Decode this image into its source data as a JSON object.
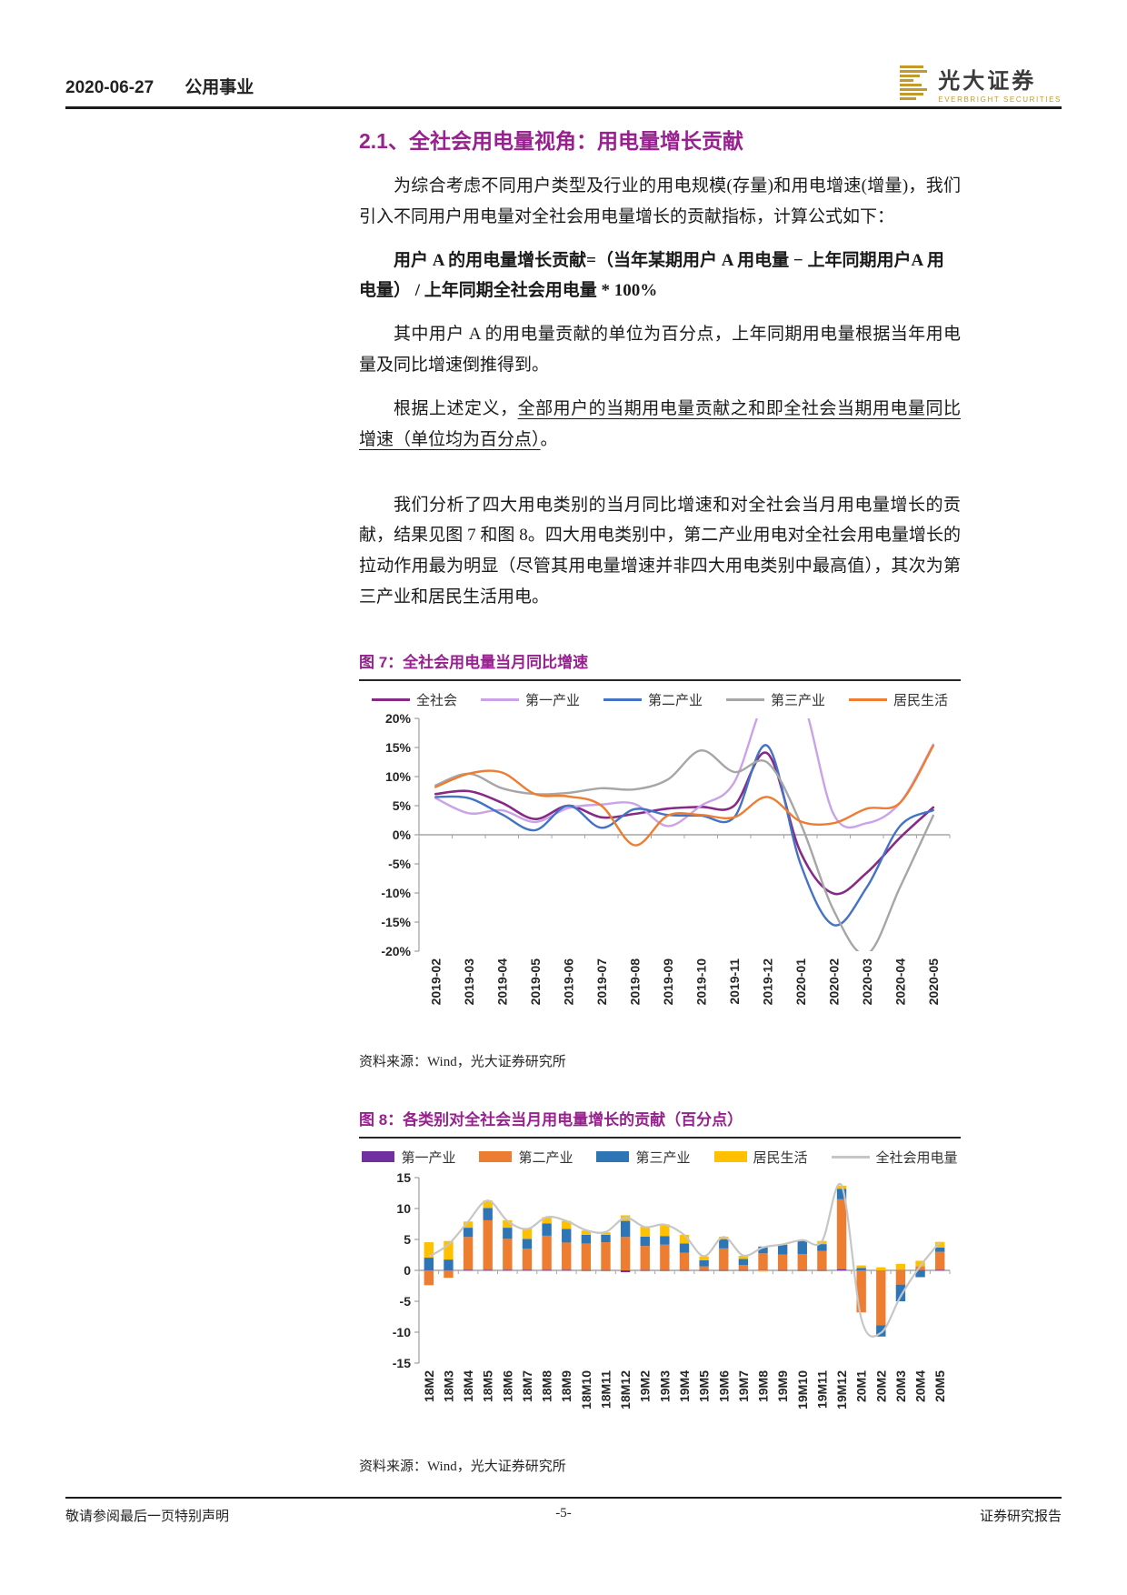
{
  "header": {
    "date": "2020-06-27",
    "category": "公用事业",
    "brand_cn": "光大证券",
    "brand_en": "EVERBRIGHT SECURITIES"
  },
  "section": {
    "heading": "2.1、全社会用电量视角：用电量增长贡献",
    "p1": "为综合考虑不同用户类型及行业的用电规模(存量)和用电增速(增量)，我们引入不同用户用电量对全社会用电量增长的贡献指标，计算公式如下：",
    "formula": "用户 A 的用电量增长贡献=（当年某期用户 A 用电量 − 上年同期用户A 用电量） / 上年同期全社会用电量 * 100%",
    "p3": "其中用户 A 的用电量贡献的单位为百分点，上年同期用电量根据当年用电量及同比增速倒推得到。",
    "p4_prefix": "根据上述定义，",
    "p4_underline": "全部用户的当期用电量贡献之和即全社会当期用电量同比增速（单位均为百分点）",
    "p4_suffix": "。",
    "p5": "我们分析了四大用电类别的当月同比增速和对全社会当月用电量增长的贡献，结果见图 7 和图 8。四大用电类别中，第二产业用电对全社会用电量增长的拉动作用最为明显（尽管其用电量增速并非四大用电类别中最高值），其次为第三产业和居民生活用电。"
  },
  "figure7": {
    "title": "图 7：全社会用电量当月同比增速",
    "source": "资料来源：Wind，光大证券研究所"
  },
  "figure8": {
    "title": "图 8：各类别对全社会当月用电量增长的贡献（百分点）",
    "source": "资料来源：Wind，光大证券研究所"
  },
  "footer": {
    "left": "敬请参阅最后一页特别声明",
    "center": "-5-",
    "right": "证券研究报告"
  },
  "chart_data": [
    {
      "type": "line",
      "title": "全社会用电量当月同比增速",
      "x": [
        "2019-02",
        "2019-03",
        "2019-04",
        "2019-05",
        "2019-06",
        "2019-07",
        "2019-08",
        "2019-09",
        "2019-10",
        "2019-11",
        "2019-12",
        "2020-01",
        "2020-02",
        "2020-03",
        "2020-04",
        "2020-05"
      ],
      "series": [
        {
          "name": "全社会",
          "color": "#872a86",
          "width": 2.6,
          "values": [
            7.0,
            7.5,
            5.5,
            2.7,
            5.0,
            3.0,
            3.6,
            4.5,
            4.8,
            5.0,
            14.0,
            -3.0,
            -10.1,
            -6.5,
            -0.5,
            4.7
          ]
        },
        {
          "name": "第一产业",
          "color": "#c9a2e8",
          "width": 2.4,
          "values": [
            6.3,
            3.7,
            4.2,
            2.2,
            4.6,
            5.2,
            5.3,
            1.5,
            5.0,
            9.0,
            24.0,
            24.0,
            3.5,
            2.0,
            5.5,
            15.5
          ]
        },
        {
          "name": "第二产业",
          "color": "#4472c4",
          "width": 2.4,
          "values": [
            6.5,
            6.3,
            3.5,
            0.8,
            5.0,
            1.2,
            4.4,
            3.4,
            3.3,
            3.0,
            15.3,
            -5.0,
            -15.5,
            -9.0,
            1.5,
            4.2
          ]
        },
        {
          "name": "第三产业",
          "color": "#a6a6a6",
          "width": 2.4,
          "values": [
            8.5,
            10.5,
            8.0,
            7.0,
            7.2,
            8.0,
            7.8,
            9.5,
            14.5,
            10.8,
            12.4,
            2.0,
            -13.0,
            -20.5,
            -9.0,
            3.3
          ]
        },
        {
          "name": "居民生活",
          "color": "#ed7d31",
          "width": 2.4,
          "values": [
            8.2,
            10.5,
            10.7,
            7.0,
            6.6,
            5.0,
            -1.8,
            3.3,
            3.4,
            3.0,
            6.5,
            2.3,
            2.0,
            4.5,
            5.5,
            15.3
          ]
        }
      ],
      "ylim": [
        -20,
        20
      ],
      "ytick_step": 5,
      "yformat": "percent",
      "grid": false,
      "legend_position": "top"
    },
    {
      "type": "bar",
      "stacked": true,
      "title": "各类别对全社会当月用电量增长的贡献（百分点）",
      "categories": [
        "18M2",
        "18M3",
        "18M4",
        "18M5",
        "18M6",
        "18M7",
        "18M8",
        "18M9",
        "18M10",
        "18M11",
        "18M12",
        "19M2",
        "19M3",
        "19M4",
        "19M5",
        "19M6",
        "19M7",
        "19M8",
        "19M9",
        "19M10",
        "19M11",
        "19M12",
        "20M1",
        "20M2",
        "20M3",
        "20M4",
        "20M5"
      ],
      "series": [
        {
          "name": "第一产业",
          "color": "#7030a0",
          "values": [
            0.05,
            0.05,
            0.1,
            0.1,
            0.1,
            0.1,
            0.1,
            0.1,
            0.05,
            0.05,
            -0.3,
            0.05,
            0.05,
            0.05,
            0.05,
            0.05,
            0.05,
            0.05,
            0.05,
            0.05,
            0.05,
            0.2,
            0.0,
            0.0,
            0.05,
            0.05,
            0.1
          ]
        },
        {
          "name": "第二产业",
          "color": "#ed7d31",
          "values": [
            -2.4,
            -1.2,
            5.3,
            8.0,
            5.0,
            3.4,
            5.5,
            4.4,
            4.3,
            4.5,
            5.4,
            3.9,
            4.1,
            2.8,
            0.6,
            3.5,
            0.8,
            2.7,
            2.5,
            2.6,
            3.1,
            11.3,
            -6.8,
            -8.9,
            -2.3,
            0.6,
            2.9
          ]
        },
        {
          "name": "第三产业",
          "color": "#2e75b6",
          "values": [
            2.0,
            1.7,
            1.5,
            2.0,
            1.8,
            1.6,
            2.0,
            2.2,
            1.4,
            1.2,
            2.6,
            1.5,
            1.4,
            1.5,
            1.0,
            1.5,
            1.0,
            1.1,
            1.6,
            2.2,
            1.1,
            1.7,
            0.4,
            -1.8,
            -2.7,
            -1.1,
            0.7
          ]
        },
        {
          "name": "居民生活",
          "color": "#ffc000",
          "values": [
            2.5,
            3.0,
            1.0,
            1.2,
            1.2,
            1.7,
            1.0,
            1.3,
            0.7,
            0.4,
            0.9,
            1.6,
            1.9,
            1.4,
            0.6,
            0.4,
            0.5,
            -0.2,
            0.1,
            0.1,
            0.5,
            0.5,
            0.4,
            0.5,
            1.0,
            0.9,
            0.9
          ]
        }
      ],
      "line_series": {
        "name": "全社会用电量",
        "color": "#c6c6c6",
        "values": [
          2.2,
          4.2,
          7.9,
          11.3,
          8.0,
          6.7,
          8.6,
          8.0,
          6.5,
          6.2,
          8.5,
          7.0,
          7.4,
          5.7,
          2.3,
          5.4,
          2.4,
          3.7,
          4.2,
          4.9,
          4.7,
          13.7,
          -7.8,
          -10.1,
          -4.2,
          0.7,
          4.6
        ]
      },
      "ylim": [
        -15,
        15
      ],
      "ytick_step": 5,
      "yformat": "plain",
      "grid": false,
      "legend_position": "top"
    }
  ]
}
